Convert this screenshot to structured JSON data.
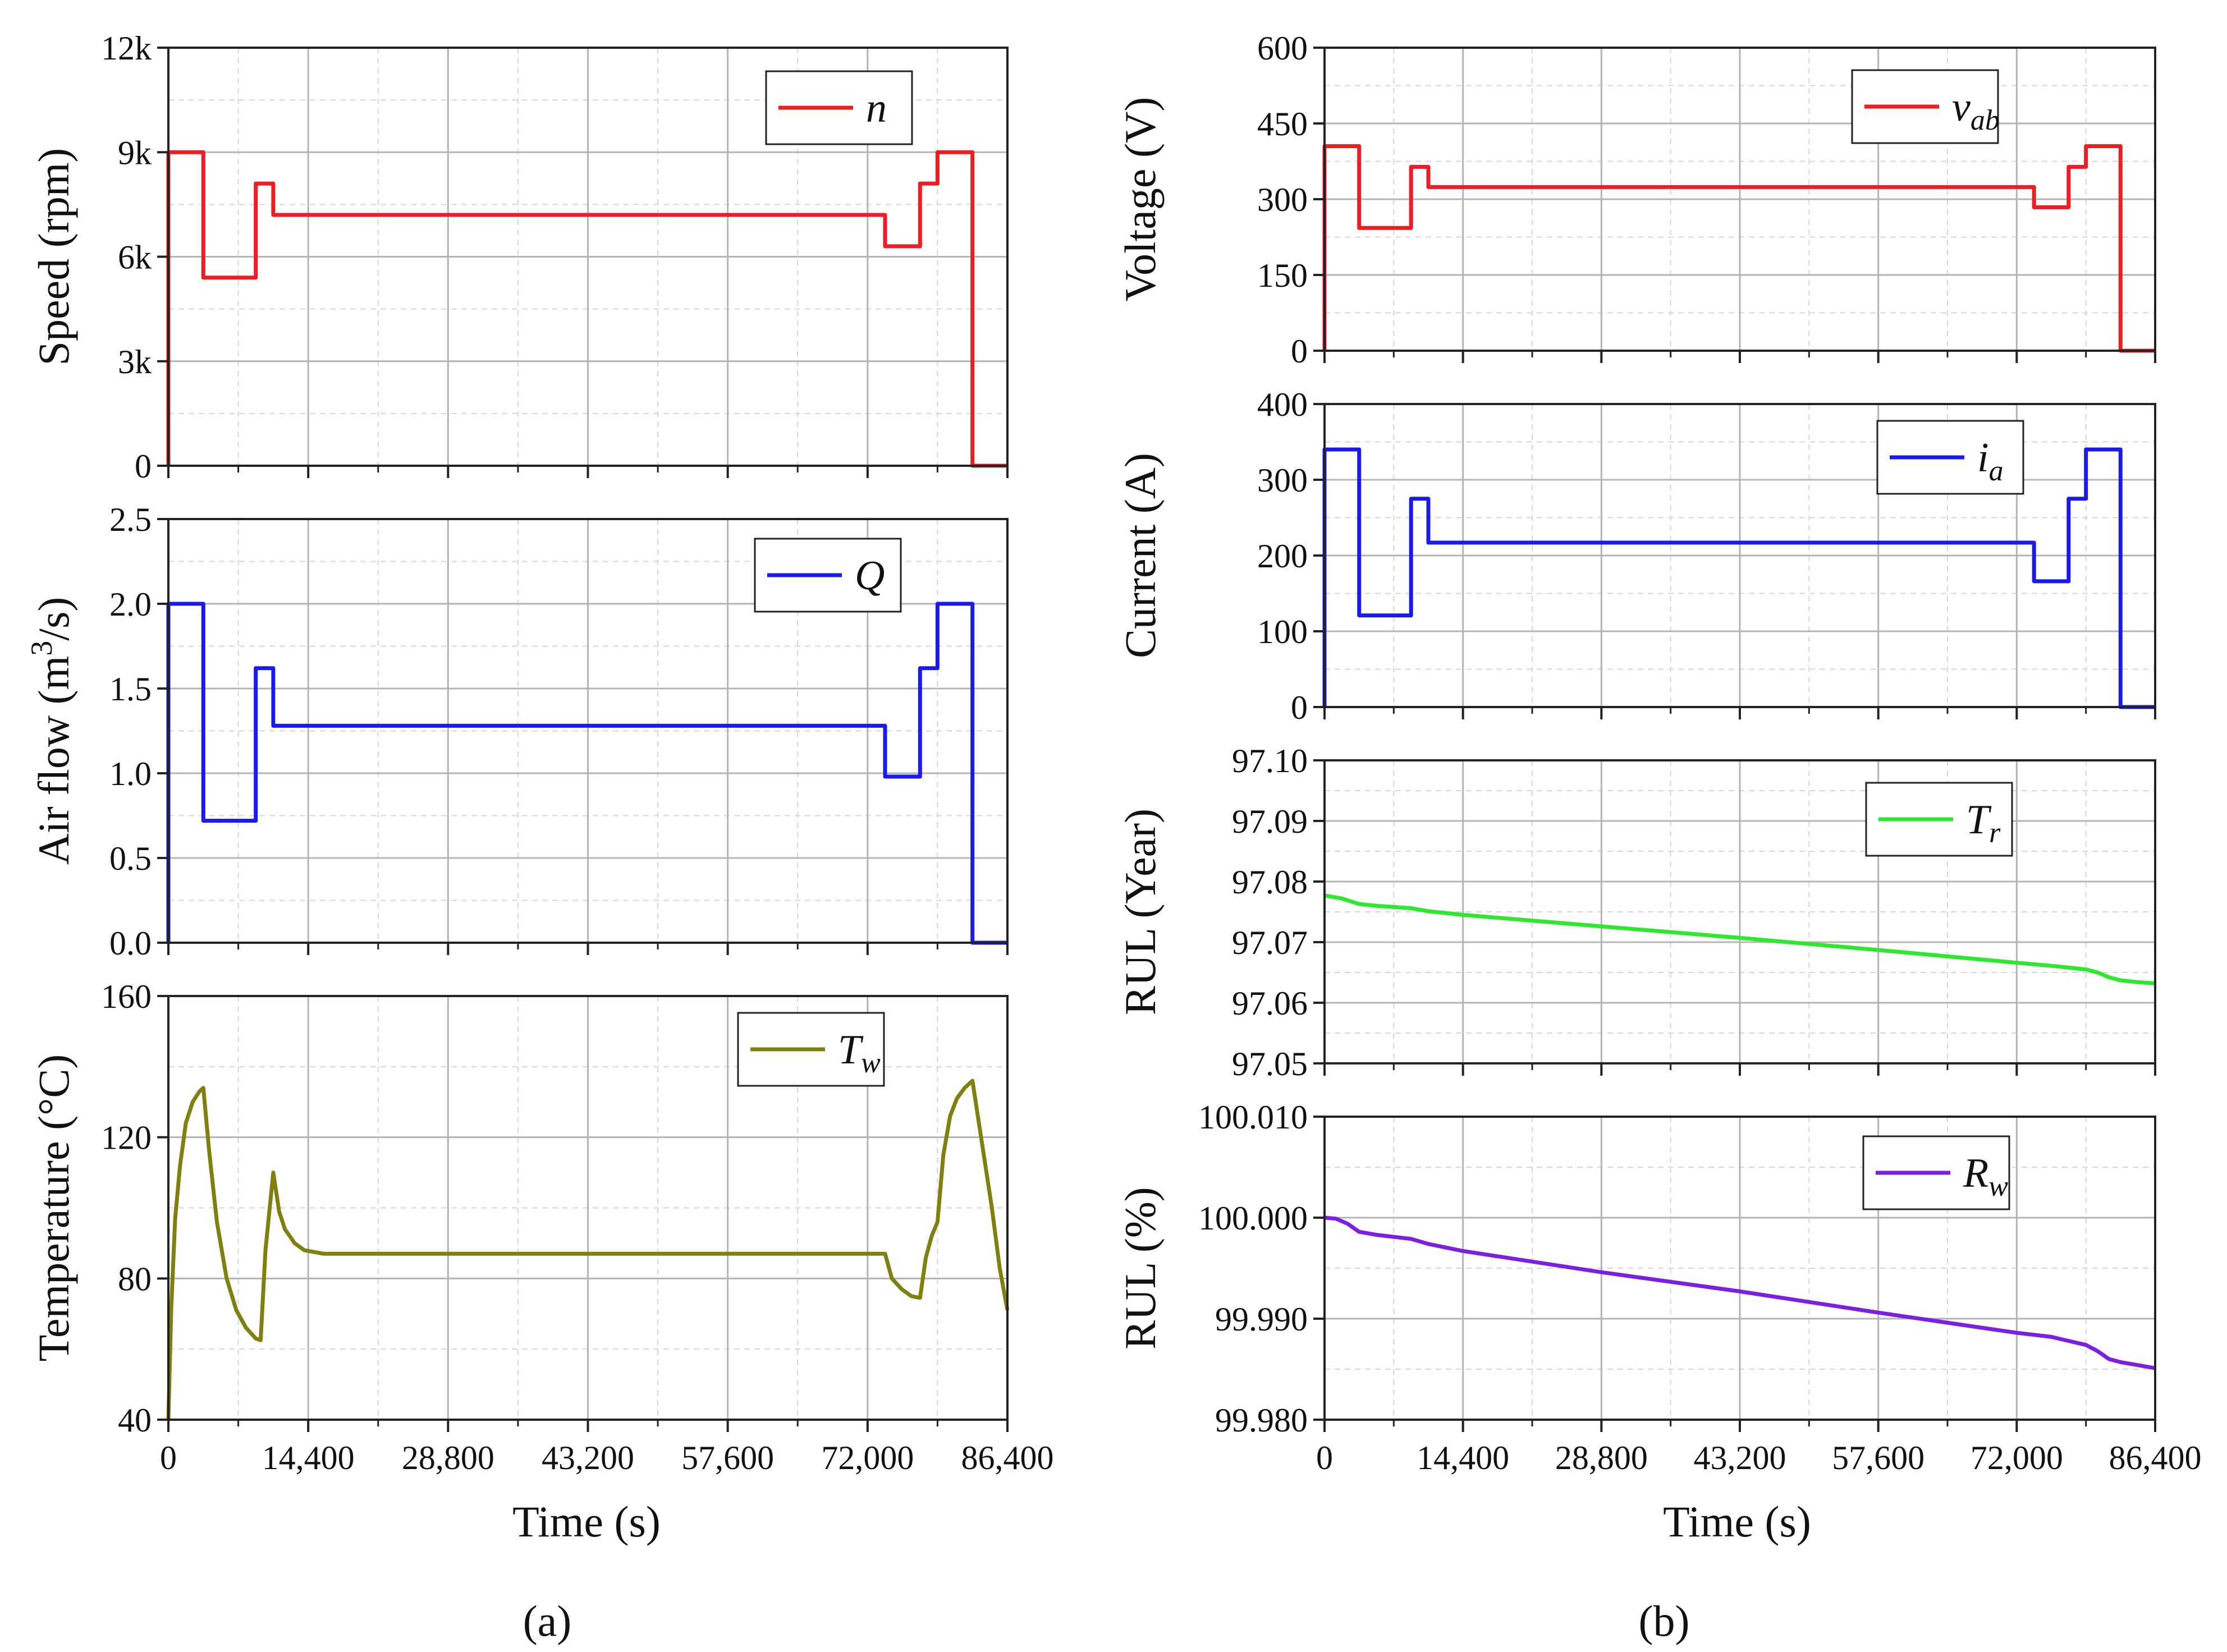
{
  "figure": {
    "time_label": "Time (s)",
    "time_ticks": [
      "0",
      "14,400",
      "28,800",
      "43,200",
      "57,600",
      "72,000",
      "86,400"
    ],
    "panel_a_label": "(a)",
    "panel_b_label": "(b)"
  },
  "chart_data": [
    {
      "id": "speed",
      "type": "line",
      "ylabel": "Speed (rpm)",
      "xlim": [
        0,
        86400
      ],
      "ylim": [
        0,
        12000
      ],
      "yticks": [
        "0",
        "3k",
        "6k",
        "9k",
        "12k"
      ],
      "legend": "n",
      "color": "#ee1c23",
      "series": [
        {
          "name": "n",
          "x": [
            0,
            0,
            3600,
            3600,
            9000,
            9000,
            10800,
            10800,
            73800,
            73800,
            77400,
            77400,
            79200,
            79200,
            82800,
            82800,
            86400
          ],
          "y": [
            0,
            9000,
            9000,
            5400,
            5400,
            8100,
            8100,
            7200,
            7200,
            6300,
            6300,
            8100,
            8100,
            9000,
            9000,
            0,
            0
          ]
        }
      ]
    },
    {
      "id": "airflow",
      "type": "line",
      "ylabel": "Air flow (m³/s)",
      "xlim": [
        0,
        86400
      ],
      "ylim": [
        0,
        2.5
      ],
      "yticks": [
        "0.0",
        "0.5",
        "1.0",
        "1.5",
        "2.0",
        "2.5"
      ],
      "legend": "Q",
      "color": "#1a1aee",
      "series": [
        {
          "name": "Q",
          "x": [
            0,
            0,
            3600,
            3600,
            9000,
            9000,
            10800,
            10800,
            73800,
            73800,
            77400,
            77400,
            79200,
            79200,
            82800,
            82800,
            86400
          ],
          "y": [
            0,
            2.0,
            2.0,
            0.72,
            0.72,
            1.62,
            1.62,
            1.28,
            1.28,
            0.98,
            0.98,
            1.62,
            1.62,
            2.0,
            2.0,
            0,
            0
          ]
        }
      ]
    },
    {
      "id": "temperature",
      "type": "line",
      "ylabel": "Temperature (°C)",
      "xlim": [
        0,
        86400
      ],
      "ylim": [
        40,
        160
      ],
      "yticks": [
        "40",
        "80",
        "120",
        "160"
      ],
      "legend": "Tw",
      "color": "#808010",
      "series": [
        {
          "name": "Tw",
          "x": [
            0,
            300,
            700,
            1200,
            1800,
            2500,
            3200,
            3600,
            4200,
            5000,
            6000,
            7000,
            8000,
            9000,
            9500,
            10000,
            10800,
            11400,
            12000,
            13000,
            14000,
            16000,
            20000,
            73800,
            74500,
            75500,
            76500,
            77400,
            78000,
            78600,
            79200,
            79800,
            80500,
            81200,
            82000,
            82800,
            83800,
            84800,
            85600,
            86400
          ],
          "y": [
            40,
            72,
            97,
            112,
            124,
            130,
            133,
            134,
            116,
            96,
            80,
            71,
            66,
            63,
            62.5,
            88,
            110,
            99,
            94,
            90,
            88,
            87,
            87,
            87,
            80,
            77,
            75,
            74.5,
            86,
            92,
            96,
            115,
            126,
            131,
            134,
            136,
            118,
            100,
            83,
            71
          ]
        }
      ]
    },
    {
      "id": "voltage",
      "type": "line",
      "ylabel": "Voltage (V)",
      "xlim": [
        0,
        86400
      ],
      "ylim": [
        0,
        600
      ],
      "yticks": [
        "0",
        "150",
        "300",
        "450",
        "600"
      ],
      "legend": "vab",
      "color": "#ee1c23",
      "series": [
        {
          "name": "vab",
          "x": [
            0,
            0,
            3600,
            3600,
            9000,
            9000,
            10800,
            10800,
            73800,
            73800,
            77400,
            77400,
            79200,
            79200,
            82800,
            82800,
            86400
          ],
          "y": [
            0,
            405,
            405,
            243,
            243,
            364,
            364,
            324,
            324,
            284,
            284,
            364,
            364,
            405,
            405,
            0,
            0
          ]
        }
      ]
    },
    {
      "id": "current",
      "type": "line",
      "ylabel": "Current (A)",
      "xlim": [
        0,
        86400
      ],
      "ylim": [
        0,
        400
      ],
      "yticks": [
        "0",
        "100",
        "200",
        "300",
        "400"
      ],
      "legend": "ia",
      "color": "#1a1aee",
      "series": [
        {
          "name": "ia",
          "x": [
            0,
            0,
            3600,
            3600,
            9000,
            9000,
            10800,
            10800,
            73800,
            73800,
            77400,
            77400,
            79200,
            79200,
            82800,
            82800,
            86400
          ],
          "y": [
            0,
            340,
            340,
            121,
            121,
            275,
            275,
            217,
            217,
            166,
            166,
            275,
            275,
            340,
            340,
            0,
            0
          ]
        }
      ]
    },
    {
      "id": "rul_year",
      "type": "line",
      "ylabel": "RUL (Year)",
      "xlim": [
        0,
        86400
      ],
      "ylim": [
        97.05,
        97.1
      ],
      "yticks": [
        "97.05",
        "97.06",
        "97.07",
        "97.08",
        "97.09",
        "97.10"
      ],
      "legend": "Tr",
      "color": "#2ee82e",
      "series": [
        {
          "name": "Tr",
          "x": [
            0,
            1800,
            3600,
            5400,
            7200,
            9000,
            10800,
            14400,
            28800,
            43200,
            57600,
            72000,
            75600,
            79200,
            80400,
            81600,
            82800,
            84600,
            86400
          ],
          "y": [
            97.0777,
            97.0772,
            97.0763,
            97.076,
            97.0758,
            97.0756,
            97.0751,
            97.0745,
            97.0726,
            97.0707,
            97.0687,
            97.0666,
            97.0661,
            97.0655,
            97.065,
            97.0642,
            97.0637,
            97.0634,
            97.0632
          ]
        }
      ]
    },
    {
      "id": "rul_percent",
      "type": "line",
      "ylabel": "RUL (%)",
      "xlim": [
        0,
        86400
      ],
      "ylim": [
        99.98,
        100.01
      ],
      "yticks": [
        "99.980",
        "99.990",
        "100.000",
        "100.010"
      ],
      "legend": "Rw",
      "color": "#7b1fe0",
      "series": [
        {
          "name": "Rw",
          "x": [
            0,
            1200,
            2400,
            3600,
            5400,
            7200,
            9000,
            10800,
            14400,
            28800,
            43200,
            57600,
            72000,
            75600,
            79200,
            80400,
            81600,
            82800,
            84600,
            86400
          ],
          "y": [
            100.0,
            99.9999,
            99.9994,
            99.9986,
            99.9983,
            99.9981,
            99.9979,
            99.9974,
            99.9967,
            99.9946,
            99.9927,
            99.9906,
            99.9886,
            99.9882,
            99.9874,
            99.9868,
            99.986,
            99.9857,
            99.9854,
            99.9851
          ]
        }
      ]
    }
  ]
}
